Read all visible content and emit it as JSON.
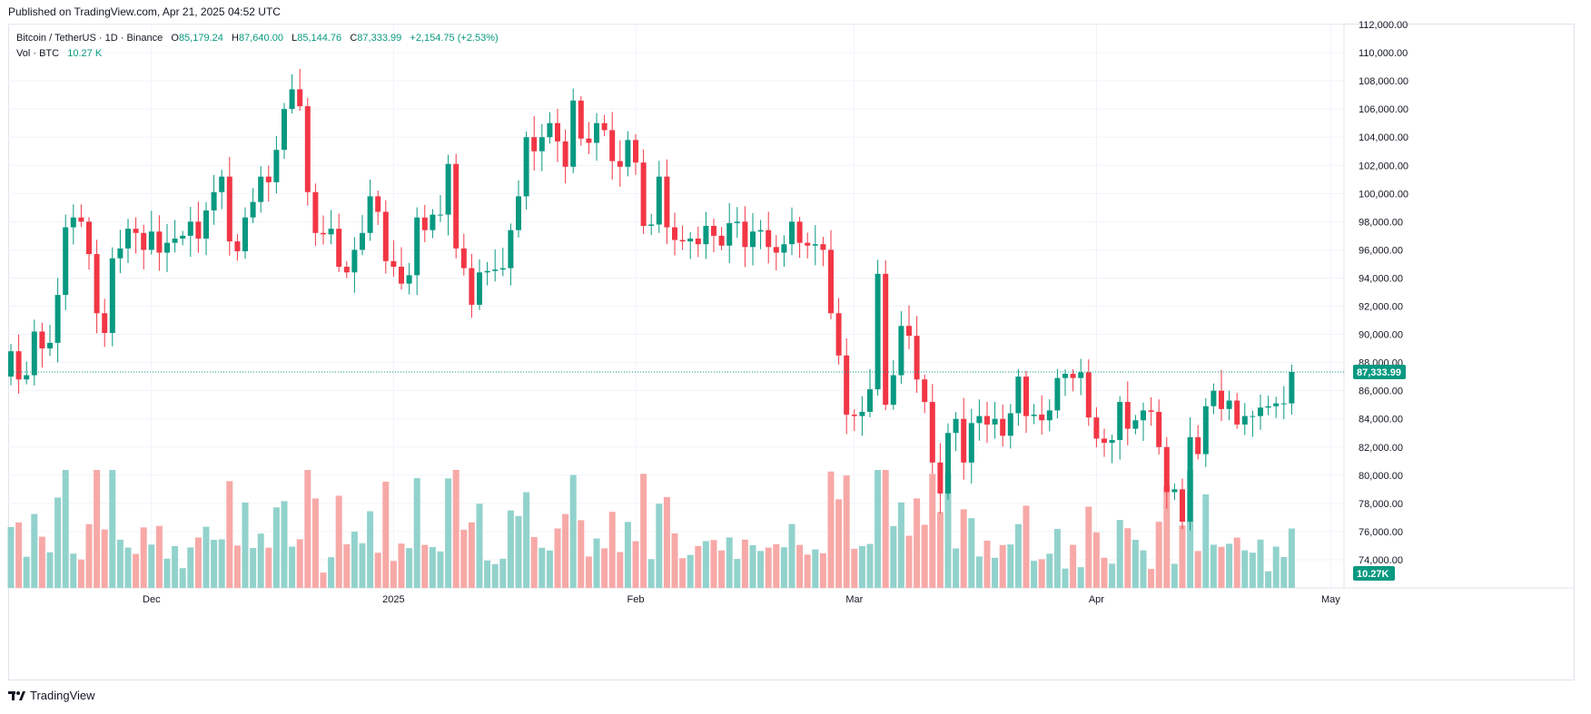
{
  "header": {
    "published": "Published on TradingView.com, Apr 21, 2025 04:52 UTC"
  },
  "legend": {
    "symbol": "Bitcoin / TetherUS · 1D · Binance",
    "o_label": "O",
    "o_value": "85,179.24",
    "h_label": "H",
    "h_value": "87,640.00",
    "l_label": "L",
    "l_value": "85,144.76",
    "c_label": "C",
    "c_value": "87,333.99",
    "change": "+2,154.75 (+2.53%)",
    "vol_label": "Vol · BTC",
    "vol_value": "10.27 K"
  },
  "footer": {
    "brand": "TradingView"
  },
  "colors": {
    "up": "#089981",
    "down": "#f23645",
    "up_vol": "#92d2cc",
    "down_vol": "#f7a9a7"
  },
  "chart_data": {
    "type": "candlestick",
    "title": "Bitcoin / TetherUS · 1D · Binance",
    "price_axis": {
      "min": 72000,
      "max": 112000,
      "ticks": [
        "74,000.00",
        "76,000.00",
        "78,000.00",
        "80,000.00",
        "82,000.00",
        "84,000.00",
        "86,000.00",
        "88,000.00",
        "90,000.00",
        "92,000.00",
        "94,000.00",
        "96,000.00",
        "98,000.00",
        "100,000.00",
        "102,000.00",
        "104,000.00",
        "106,000.00",
        "108,000.00",
        "110,000.00",
        "112,000.00"
      ],
      "tick_values": [
        74000,
        76000,
        78000,
        80000,
        82000,
        84000,
        86000,
        88000,
        90000,
        92000,
        94000,
        96000,
        98000,
        100000,
        102000,
        104000,
        106000,
        108000,
        110000,
        112000
      ]
    },
    "time_axis": {
      "labels": [
        {
          "text": "Dec",
          "index": 18
        },
        {
          "text": "2025",
          "index": 49
        },
        {
          "text": "Feb",
          "index": 80
        },
        {
          "text": "Mar",
          "index": 108
        },
        {
          "text": "Apr",
          "index": 139
        },
        {
          "text": "May",
          "index": 169
        }
      ]
    },
    "last_price": 87333.99,
    "last_price_label": "87,333.99",
    "last_volume_label": "10.27K",
    "closes": [
      88800,
      86800,
      87100,
      90200,
      89000,
      89400,
      92800,
      97600,
      98300,
      98000,
      95700,
      91500,
      90100,
      95400,
      96100,
      97500,
      97200,
      96000,
      97300,
      95800,
      96500,
      96800,
      97000,
      98000,
      96800,
      98800,
      100100,
      101200,
      96600,
      95900,
      98300,
      99400,
      101200,
      100800,
      103100,
      106000,
      107400,
      106200,
      100100,
      97200,
      97100,
      97500,
      94800,
      94400,
      96000,
      97200,
      99800,
      98700,
      95200,
      94800,
      93600,
      94200,
      98300,
      97400,
      98500,
      98500,
      102100,
      96100,
      94700,
      92100,
      94400,
      94500,
      94600,
      94700,
      97400,
      99800,
      104000,
      103000,
      104000,
      105000,
      103700,
      101900,
      106600,
      103900,
      103600,
      105000,
      104500,
      102300,
      101900,
      103800,
      102200,
      97700,
      97800,
      101200,
      97600,
      96700,
      96600,
      96800,
      96400,
      97700,
      97000,
      96300,
      97900,
      98000,
      96200,
      97300,
      97400,
      96200,
      95800,
      96400,
      98000,
      96500,
      96300,
      96400,
      96000,
      91500,
      88500,
      84300,
      84200,
      84500,
      86100,
      94300,
      85000,
      87100,
      90600,
      89900,
      86800,
      85200,
      80900,
      78700,
      83000,
      84000,
      80900,
      83700,
      84200,
      83600,
      84000,
      82800,
      84400,
      87000,
      84200,
      84300,
      83900,
      84600,
      86900,
      87200,
      86900,
      87300,
      84100,
      82600,
      82300,
      82500,
      85200,
      83300,
      83900,
      84600,
      84500,
      82000,
      78800,
      79000,
      76700,
      82700,
      81500,
      84900,
      86000,
      84700,
      85300,
      83600,
      84200,
      84200,
      84800,
      84900,
      85100,
      85100,
      87334
    ],
    "opens_note": "Each candle opens at the previous candle's close.",
    "volumes_note": "Volume bars plotted on a relative scale under the candles."
  }
}
